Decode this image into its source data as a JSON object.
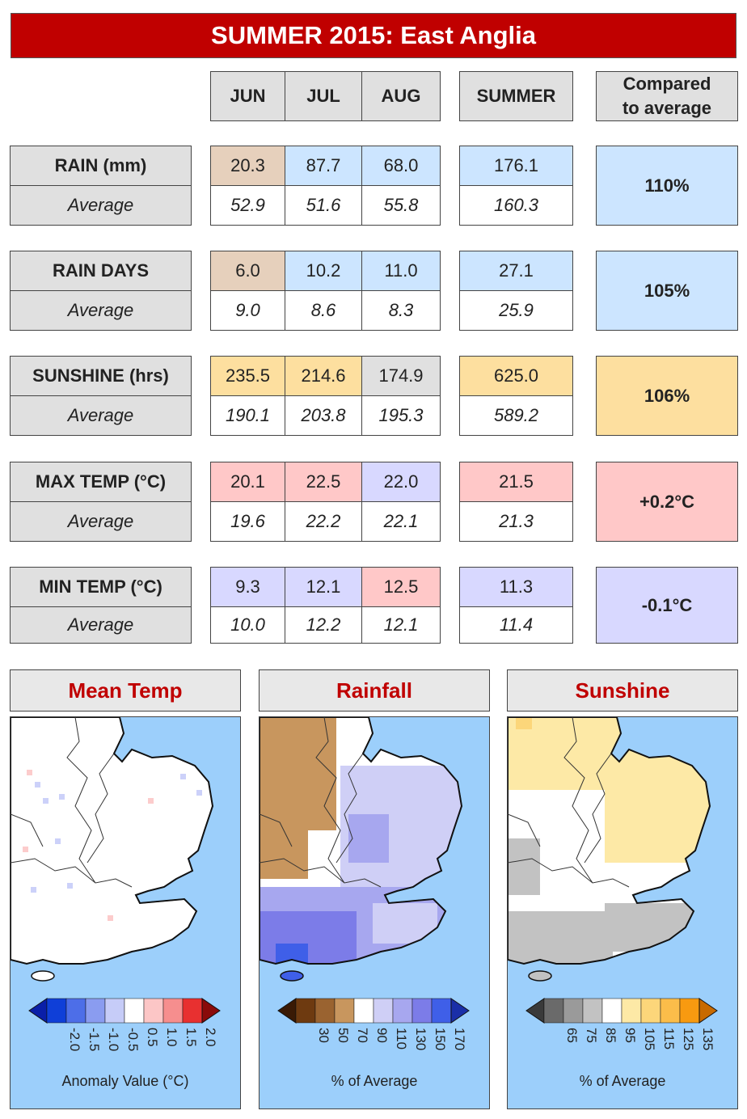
{
  "title": "SUMMER 2015: East Anglia",
  "headers": {
    "jun": "JUN",
    "jul": "JUL",
    "aug": "AUG",
    "summer": "SUMMER",
    "compared_line1": "Compared",
    "compared_line2": "to average"
  },
  "rows": [
    {
      "label": "RAIN (mm)",
      "avg_label": "Average",
      "values": [
        "20.3",
        "87.7",
        "68.0"
      ],
      "summer": "176.1",
      "averages": [
        "52.9",
        "51.6",
        "55.8"
      ],
      "summer_avg": "160.3",
      "compared": "110%"
    },
    {
      "label": "RAIN DAYS",
      "avg_label": "Average",
      "values": [
        "6.0",
        "10.2",
        "11.0"
      ],
      "summer": "27.1",
      "averages": [
        "9.0",
        "8.6",
        "8.3"
      ],
      "summer_avg": "25.9",
      "compared": "105%"
    },
    {
      "label": "SUNSHINE (hrs)",
      "avg_label": "Average",
      "values": [
        "235.5",
        "214.6",
        "174.9"
      ],
      "summer": "625.0",
      "averages": [
        "190.1",
        "203.8",
        "195.3"
      ],
      "summer_avg": "589.2",
      "compared": "106%"
    },
    {
      "label": "MAX TEMP (°C)",
      "avg_label": "Average",
      "values": [
        "20.1",
        "22.5",
        "22.0"
      ],
      "summer": "21.5",
      "averages": [
        "19.6",
        "22.2",
        "22.1"
      ],
      "summer_avg": "21.3",
      "compared": "+0.2°C"
    },
    {
      "label": "MIN TEMP (°C)",
      "avg_label": "Average",
      "values": [
        "9.3",
        "12.1",
        "12.5"
      ],
      "summer": "11.3",
      "averages": [
        "10.0",
        "12.2",
        "12.1"
      ],
      "summer_avg": "11.4",
      "compared": "-0.1°C"
    }
  ],
  "colors": {
    "dry": "#e6d0bc",
    "wet": "#cce5ff",
    "sunny": "#fddf9f",
    "grey": "#e0e0e0",
    "warm": "#ffc8c8",
    "cool": "#d8d8ff",
    "sea": "#9ccffb",
    "title_red": "#c00000"
  },
  "maps": [
    {
      "title": "Mean Temp",
      "legend_label": "Anomaly Value (°C)",
      "ticks": [
        "-2.0",
        "-1.5",
        "-1.0",
        "-0.5",
        "0.5",
        "1.0",
        "1.5",
        "2.0"
      ],
      "swatches": [
        "#0f3fd8",
        "#4d6ee8",
        "#8a9cf0",
        "#c6ccf8",
        "#ffffff",
        "#fcc6c6",
        "#f68e8e",
        "#e83030"
      ],
      "end_low": "#0a1fa8",
      "end_high": "#8a0a0a"
    },
    {
      "title": "Rainfall",
      "legend_label": "% of Average",
      "ticks": [
        "30",
        "50",
        "70",
        "90",
        "110",
        "130",
        "150",
        "170"
      ],
      "swatches": [
        "#6e3a10",
        "#9a6330",
        "#c8965e",
        "#ffffff",
        "#cfcff6",
        "#a7a7ef",
        "#7c7ce8",
        "#3f5fe8"
      ],
      "end_low": "#3a1a05",
      "end_high": "#1a2fa8"
    },
    {
      "title": "Sunshine",
      "legend_label": "% of Average",
      "ticks": [
        "65",
        "75",
        "85",
        "95",
        "105",
        "115",
        "125",
        "135"
      ],
      "swatches": [
        "#6a6a6a",
        "#9a9a9a",
        "#c2c2c2",
        "#ffffff",
        "#fde9a6",
        "#fcd67a",
        "#fbbd4a",
        "#f89a10"
      ],
      "end_low": "#3a3a3a",
      "end_high": "#c86a00"
    }
  ]
}
